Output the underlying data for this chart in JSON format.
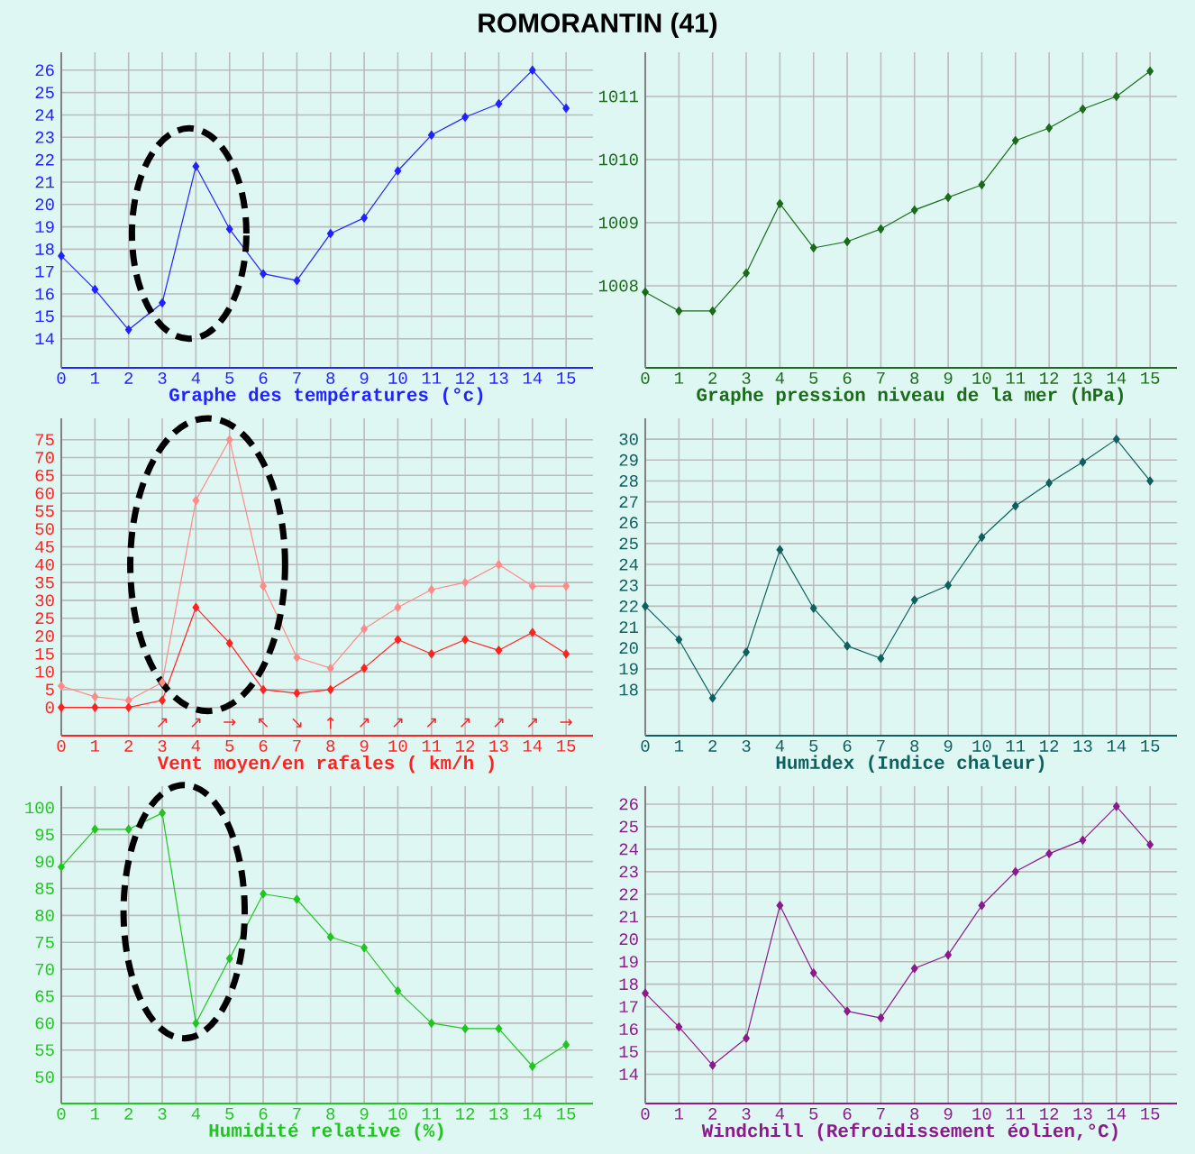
{
  "chart_data": [
    {
      "type": "line",
      "title": "ROMORANTIN (41)",
      "xlabel": "Graphe des températures (°c)",
      "grid": true,
      "marker": "diamond",
      "x": [
        0,
        1,
        2,
        3,
        4,
        5,
        6,
        7,
        8,
        9,
        10,
        11,
        12,
        13,
        14,
        15
      ],
      "xlim": [
        0,
        15.8
      ],
      "xticks": [
        0,
        1,
        2,
        3,
        4,
        5,
        6,
        7,
        8,
        9,
        10,
        11,
        12,
        13,
        14,
        15
      ],
      "ylim": [
        12.7,
        26.8
      ],
      "yticks": [
        14,
        15,
        16,
        17,
        18,
        19,
        20,
        21,
        22,
        23,
        24,
        25,
        26
      ],
      "series": [
        {
          "color": "#2222ff",
          "values": [
            17.7,
            16.2,
            14.4,
            15.6,
            21.7,
            18.9,
            16.9,
            16.6,
            18.7,
            19.4,
            21.5,
            23.1,
            23.9,
            24.5,
            26.0,
            24.3
          ]
        }
      ]
    },
    {
      "type": "line",
      "xlabel": "Graphe pression niveau de la mer (hPa)",
      "grid": true,
      "marker": "diamond",
      "x": [
        0,
        1,
        2,
        3,
        4,
        5,
        6,
        7,
        8,
        9,
        10,
        11,
        12,
        13,
        14,
        15
      ],
      "xlim": [
        0,
        15.8
      ],
      "xticks": [
        0,
        1,
        2,
        3,
        4,
        5,
        6,
        7,
        8,
        9,
        10,
        11,
        12,
        13,
        14,
        15
      ],
      "ylim": [
        1006.7,
        1011.7
      ],
      "yticks": [
        1008,
        1009,
        1010,
        1011
      ],
      "series": [
        {
          "color": "#1a6b1a",
          "values": [
            1007.9,
            1007.6,
            1007.6,
            1008.2,
            1009.3,
            1008.6,
            1008.7,
            1008.9,
            1009.2,
            1009.4,
            1009.6,
            1010.3,
            1010.5,
            1010.8,
            1011.0,
            1011.4
          ]
        }
      ]
    },
    {
      "type": "line",
      "xlabel": "Vent moyen/en rafales ( km/h )",
      "grid": true,
      "marker": "diamond",
      "x": [
        0,
        1,
        2,
        3,
        4,
        5,
        6,
        7,
        8,
        9,
        10,
        11,
        12,
        13,
        14,
        15
      ],
      "xlim": [
        0,
        15.8
      ],
      "xticks": [
        0,
        1,
        2,
        3,
        4,
        5,
        6,
        7,
        8,
        9,
        10,
        11,
        12,
        13,
        14,
        15
      ],
      "ylim": [
        -7.9,
        81
      ],
      "yticks": [
        0,
        5,
        10,
        15,
        20,
        25,
        30,
        35,
        40,
        45,
        50,
        55,
        60,
        65,
        70,
        75
      ],
      "series": [
        {
          "color": "#ff8a8a",
          "values": [
            6,
            3,
            2,
            7,
            58,
            75,
            34,
            14,
            11,
            22,
            28,
            33,
            35,
            40,
            34,
            34
          ]
        },
        {
          "color": "#ff2222",
          "values": [
            0,
            0,
            0,
            2,
            28,
            18,
            5,
            4,
            5,
            11,
            19,
            15,
            19,
            16,
            21,
            15
          ]
        }
      ],
      "annotations": [
        "↗",
        "↗",
        "→",
        "↖",
        "↘",
        "↑",
        "↗",
        "↗",
        "↗",
        "↗",
        "↗",
        "↗",
        "→"
      ]
    },
    {
      "type": "line",
      "xlabel": "Humidex (Indice chaleur)",
      "grid": true,
      "marker": "diamond",
      "x": [
        0,
        1,
        2,
        3,
        4,
        5,
        6,
        7,
        8,
        9,
        10,
        11,
        12,
        13,
        14,
        15
      ],
      "xlim": [
        0,
        15.8
      ],
      "xticks": [
        0,
        1,
        2,
        3,
        4,
        5,
        6,
        7,
        8,
        9,
        10,
        11,
        12,
        13,
        14,
        15
      ],
      "ylim": [
        15.8,
        31
      ],
      "yticks": [
        18,
        19,
        20,
        21,
        22,
        23,
        24,
        25,
        26,
        27,
        28,
        29,
        30
      ],
      "series": [
        {
          "color": "#0f5f5f",
          "values": [
            22.0,
            20.4,
            17.6,
            19.8,
            24.7,
            21.9,
            20.1,
            19.5,
            22.3,
            23.0,
            25.3,
            26.8,
            27.9,
            28.9,
            30.0,
            28.0
          ]
        }
      ]
    },
    {
      "type": "line",
      "xlabel": "Humidité relative (%)",
      "grid": true,
      "marker": "diamond",
      "x": [
        0,
        1,
        2,
        3,
        4,
        5,
        6,
        7,
        8,
        9,
        10,
        11,
        12,
        13,
        14,
        15
      ],
      "xlim": [
        0,
        15.8
      ],
      "xticks": [
        0,
        1,
        2,
        3,
        4,
        5,
        6,
        7,
        8,
        9,
        10,
        11,
        12,
        13,
        14,
        15
      ],
      "ylim": [
        45.1,
        104
      ],
      "yticks": [
        50,
        55,
        60,
        65,
        70,
        75,
        80,
        85,
        90,
        95,
        100
      ],
      "series": [
        {
          "color": "#22c422",
          "values": [
            89,
            96,
            96,
            99,
            60,
            72,
            84,
            83,
            76,
            74,
            66,
            60,
            59,
            59,
            52,
            56
          ]
        }
      ]
    },
    {
      "type": "line",
      "xlabel": "Windchill (Refroidissement éolien,°C)",
      "grid": true,
      "marker": "diamond",
      "x": [
        0,
        1,
        2,
        3,
        4,
        5,
        6,
        7,
        8,
        9,
        10,
        11,
        12,
        13,
        14,
        15
      ],
      "xlim": [
        0,
        15.8
      ],
      "xticks": [
        0,
        1,
        2,
        3,
        4,
        5,
        6,
        7,
        8,
        9,
        10,
        11,
        12,
        13,
        14,
        15
      ],
      "ylim": [
        12.7,
        26.8
      ],
      "yticks": [
        14,
        15,
        16,
        17,
        18,
        19,
        20,
        21,
        22,
        23,
        24,
        25,
        26
      ],
      "series": [
        {
          "color": "#8b1a8b",
          "values": [
            17.6,
            16.1,
            14.4,
            15.6,
            21.5,
            18.5,
            16.8,
            16.5,
            18.7,
            19.3,
            21.5,
            23.0,
            23.8,
            24.4,
            25.9,
            24.2
          ]
        }
      ]
    }
  ]
}
